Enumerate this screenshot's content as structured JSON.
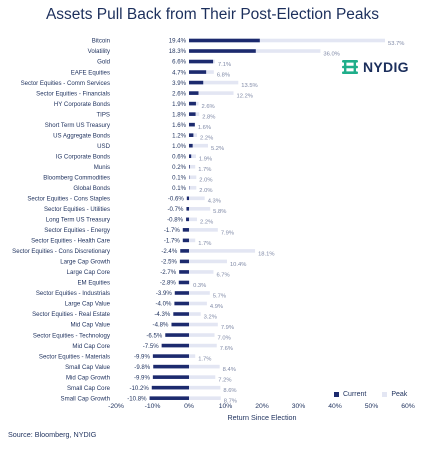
{
  "title": "Assets Pull Back from Their Post-Election Peaks",
  "source": "Source: Bloomberg, NYDIG",
  "logo": {
    "text": "NYDIG",
    "icon": "nydig-logo-icon"
  },
  "colors": {
    "current": "#1c2a6e",
    "peak": "#e3e6f3",
    "text": "#1c2f5c",
    "logo_green": "#1fae8a"
  },
  "chart_data": {
    "type": "bar",
    "orientation": "horizontal",
    "xlabel": "Return Since Election",
    "xlim": [
      -20,
      60
    ],
    "xticks": [
      -20,
      -10,
      0,
      10,
      20,
      30,
      40,
      50,
      60
    ],
    "tick_labels": [
      "-20%",
      "-10%",
      "0%",
      "10%",
      "20%",
      "30%",
      "40%",
      "50%",
      "60%"
    ],
    "grid": false,
    "legend": "bottom-right",
    "categories": [
      "Bitcoin",
      "Volatility",
      "Gold",
      "EAFE Equities",
      "Sector Equities - Comm Services",
      "Sector Equities - Financials",
      "HY Corporate Bonds",
      "TIPS",
      "Short Term US Treasury",
      "US Aggregate Bonds",
      "USD",
      "IG Corporate Bonds",
      "Munis",
      "Bloomberg Commodities",
      "Global Bonds",
      "Sector Equities - Cons Staples",
      "Sector Equities - Utilities",
      "Long Term US Treasury",
      "Sector Equities - Energy",
      "Sector Equities - Health Care",
      "Sector Equities - Cons Discretionary",
      "Large Cap Growth",
      "Large Cap Core",
      "EM Equities",
      "Sector Equities - Industrials",
      "Large Cap Value",
      "Sector Equities - Real Estate",
      "Mid Cap Value",
      "Sector Equities - Technology",
      "Mid Cap Core",
      "Sector Equities - Materials",
      "Small Cap Value",
      "Mid Cap Growth",
      "Small Cap Core",
      "Small Cap Growth"
    ],
    "series": [
      {
        "name": "Current",
        "values": [
          19.4,
          18.3,
          6.6,
          4.7,
          3.9,
          2.6,
          1.9,
          1.8,
          1.6,
          1.2,
          1.0,
          0.6,
          0.2,
          0.1,
          0.1,
          -0.6,
          -0.7,
          -0.8,
          -1.7,
          -1.7,
          -2.4,
          -2.5,
          -2.7,
          -2.8,
          -3.9,
          -4.0,
          -4.3,
          -4.8,
          -6.5,
          -7.5,
          -9.9,
          -9.8,
          -9.9,
          -10.2,
          -10.8
        ],
        "labels": [
          "19.4%",
          "18.3%",
          "6.6%",
          "4.7%",
          "3.9%",
          "2.6%",
          "1.9%",
          "1.8%",
          "1.6%",
          "1.2%",
          "1.0%",
          "0.6%",
          "0.2%",
          "0.1%",
          "0.1%",
          "-0.6%",
          "-0.7%",
          "-0.8%",
          "-1.7%",
          "-1.7%",
          "-2.4%",
          "-2.5%",
          "-2.7%",
          "-2.8%",
          "-3.9%",
          "-4.0%",
          "-4.3%",
          "-4.8%",
          "-6.5%",
          "-7.5%",
          "-9.9%",
          "-9.8%",
          "-9.9%",
          "-10.2%",
          "-10.8%"
        ]
      },
      {
        "name": "Peak",
        "values": [
          53.7,
          36.0,
          7.1,
          6.8,
          13.5,
          12.2,
          2.6,
          2.8,
          1.6,
          2.2,
          5.2,
          1.9,
          1.7,
          2.0,
          2.0,
          4.3,
          5.8,
          2.2,
          7.9,
          1.7,
          18.1,
          10.4,
          6.7,
          0.3,
          5.7,
          4.9,
          3.2,
          7.9,
          7.0,
          7.6,
          1.7,
          8.4,
          7.2,
          8.6,
          8.7
        ],
        "labels": [
          "53.7%",
          "36.0%",
          "7.1%",
          "6.8%",
          "13.5%",
          "12.2%",
          "2.6%",
          "2.8%",
          "1.6%",
          "2.2%",
          "5.2%",
          "1.9%",
          "1.7%",
          "2.0%",
          "2.0%",
          "4.3%",
          "5.8%",
          "2.2%",
          "7.9%",
          "1.7%",
          "18.1%",
          "10.4%",
          "6.7%",
          "0.3%",
          "5.7%",
          "4.9%",
          "3.2%",
          "7.9%",
          "7.0%",
          "7.6%",
          "1.7%",
          "8.4%",
          "7.2%",
          "8.6%",
          "8.7%"
        ]
      }
    ]
  }
}
